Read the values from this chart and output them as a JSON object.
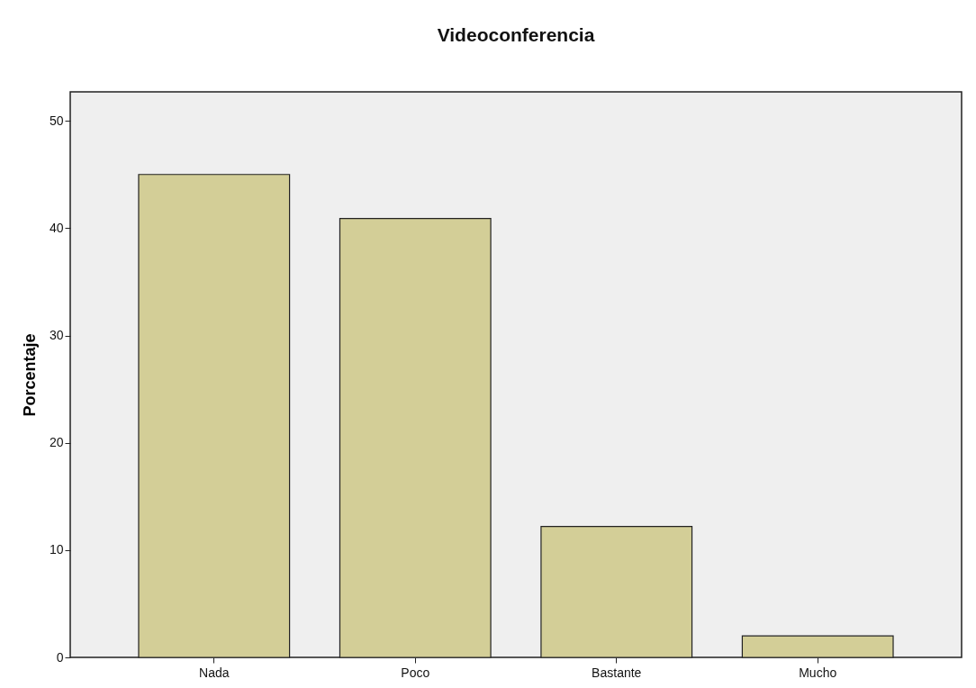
{
  "chart_data": {
    "type": "bar",
    "title": "Videoconferencia",
    "ylabel": "Porcentaje",
    "categories": [
      "Nada",
      "Poco",
      "Bastante",
      "Mucho"
    ],
    "values": [
      45.0,
      40.9,
      12.2,
      2.0
    ],
    "color": "#d3ce97",
    "ylim": [
      0,
      52.7
    ],
    "yticks": [
      0,
      10,
      20,
      30,
      40,
      50
    ],
    "grid": false
  }
}
